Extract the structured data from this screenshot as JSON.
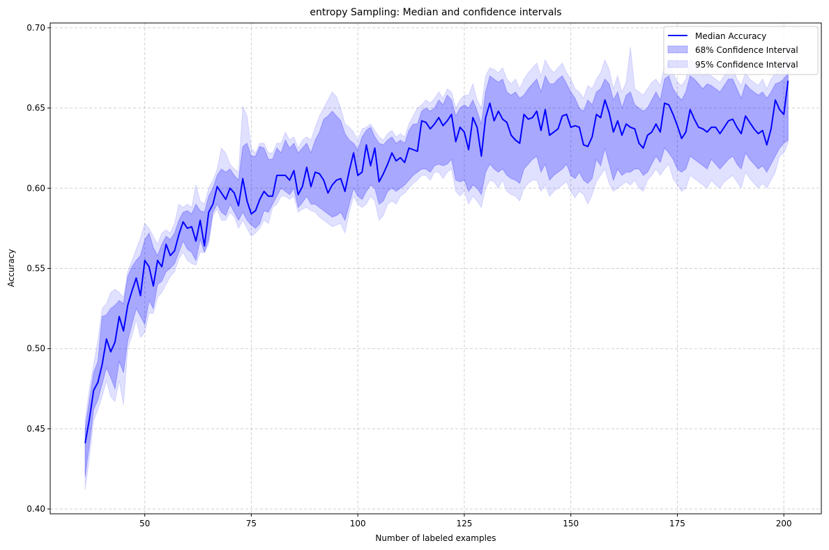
{
  "chart_data": {
    "type": "line",
    "title": "entropy Sampling: Median and confidence intervals",
    "xlabel": "Number of labeled examples",
    "ylabel": "Accuracy",
    "xlim": [
      27.8,
      208.8
    ],
    "ylim": [
      0.397,
      0.703
    ],
    "xticks": [
      50,
      75,
      100,
      125,
      150,
      175,
      200
    ],
    "yticks": [
      0.4,
      0.45,
      0.5,
      0.55,
      0.6,
      0.65,
      0.7
    ],
    "ytick_labels": [
      "0.40",
      "0.45",
      "0.50",
      "0.55",
      "0.60",
      "0.65",
      "0.70"
    ],
    "grid": true,
    "legend_position": "top-right",
    "x_start": 36,
    "x_end": 201,
    "series": [
      {
        "name": "Median Accuracy",
        "kind": "line",
        "color": "#0000ff",
        "values": [
          0.441,
          0.456,
          0.474,
          0.479,
          0.49,
          0.506,
          0.498,
          0.504,
          0.52,
          0.511,
          0.527,
          0.536,
          0.544,
          0.533,
          0.555,
          0.551,
          0.539,
          0.555,
          0.551,
          0.565,
          0.558,
          0.561,
          0.571,
          0.579,
          0.575,
          0.576,
          0.567,
          0.58,
          0.564,
          0.585,
          0.59,
          0.601,
          0.597,
          0.593,
          0.6,
          0.597,
          0.589,
          0.606,
          0.592,
          0.584,
          0.586,
          0.593,
          0.598,
          0.595,
          0.595,
          0.608,
          0.608,
          0.608,
          0.605,
          0.611,
          0.596,
          0.601,
          0.613,
          0.601,
          0.61,
          0.609,
          0.605,
          0.597,
          0.602,
          0.605,
          0.606,
          0.598,
          0.611,
          0.622,
          0.608,
          0.61,
          0.627,
          0.614,
          0.625,
          0.604,
          0.609,
          0.615,
          0.622,
          0.617,
          0.619,
          0.616,
          0.625,
          0.624,
          0.623,
          0.642,
          0.641,
          0.637,
          0.64,
          0.644,
          0.639,
          0.642,
          0.646,
          0.629,
          0.638,
          0.635,
          0.624,
          0.644,
          0.638,
          0.62,
          0.644,
          0.653,
          0.642,
          0.648,
          0.643,
          0.641,
          0.633,
          0.63,
          0.628,
          0.646,
          0.643,
          0.644,
          0.648,
          0.636,
          0.649,
          0.633,
          0.635,
          0.637,
          0.645,
          0.646,
          0.638,
          0.639,
          0.638,
          0.627,
          0.626,
          0.632,
          0.646,
          0.644,
          0.655,
          0.647,
          0.635,
          0.642,
          0.633,
          0.64,
          0.638,
          0.637,
          0.628,
          0.625,
          0.633,
          0.635,
          0.64,
          0.635,
          0.653,
          0.652,
          0.646,
          0.639,
          0.631,
          0.635,
          0.649,
          0.643,
          0.638,
          0.637,
          0.635,
          0.638,
          0.638,
          0.634,
          0.638,
          0.642,
          0.643,
          0.638,
          0.634,
          0.645,
          0.641,
          0.637,
          0.634,
          0.636,
          0.627,
          0.637,
          0.655,
          0.649,
          0.646,
          0.667
        ]
      },
      {
        "name": "68% Confidence Interval",
        "kind": "band",
        "color": "#0000ff",
        "opacity": 0.25,
        "upper": [
          0.45,
          0.468,
          0.485,
          0.492,
          0.52,
          0.521,
          0.525,
          0.527,
          0.53,
          0.528,
          0.545,
          0.551,
          0.555,
          0.558,
          0.568,
          0.572,
          0.563,
          0.558,
          0.565,
          0.57,
          0.568,
          0.572,
          0.58,
          0.585,
          0.586,
          0.584,
          0.59,
          0.586,
          0.585,
          0.595,
          0.6,
          0.608,
          0.612,
          0.61,
          0.612,
          0.608,
          0.605,
          0.626,
          0.628,
          0.62,
          0.62,
          0.626,
          0.625,
          0.618,
          0.618,
          0.625,
          0.622,
          0.63,
          0.625,
          0.628,
          0.622,
          0.625,
          0.628,
          0.622,
          0.63,
          0.635,
          0.643,
          0.645,
          0.648,
          0.645,
          0.642,
          0.634,
          0.63,
          0.628,
          0.624,
          0.632,
          0.636,
          0.638,
          0.632,
          0.628,
          0.627,
          0.63,
          0.632,
          0.628,
          0.63,
          0.628,
          0.636,
          0.64,
          0.64,
          0.648,
          0.65,
          0.648,
          0.65,
          0.655,
          0.652,
          0.658,
          0.655,
          0.645,
          0.65,
          0.652,
          0.65,
          0.655,
          0.648,
          0.64,
          0.66,
          0.67,
          0.668,
          0.666,
          0.668,
          0.66,
          0.658,
          0.66,
          0.656,
          0.658,
          0.662,
          0.665,
          0.668,
          0.66,
          0.67,
          0.665,
          0.665,
          0.668,
          0.67,
          0.665,
          0.66,
          0.656,
          0.65,
          0.648,
          0.655,
          0.652,
          0.66,
          0.662,
          0.668,
          0.665,
          0.655,
          0.66,
          0.65,
          0.658,
          0.66,
          0.652,
          0.65,
          0.648,
          0.65,
          0.655,
          0.66,
          0.655,
          0.668,
          0.67,
          0.662,
          0.658,
          0.655,
          0.66,
          0.67,
          0.668,
          0.665,
          0.662,
          0.665,
          0.664,
          0.662,
          0.66,
          0.664,
          0.668,
          0.668,
          0.662,
          0.656,
          0.665,
          0.662,
          0.66,
          0.658,
          0.66,
          0.656,
          0.66,
          0.665,
          0.666,
          0.668,
          0.672
        ],
        "lower": [
          0.42,
          0.44,
          0.462,
          0.468,
          0.478,
          0.488,
          0.482,
          0.475,
          0.492,
          0.485,
          0.505,
          0.515,
          0.525,
          0.52,
          0.515,
          0.53,
          0.525,
          0.54,
          0.542,
          0.548,
          0.55,
          0.553,
          0.56,
          0.567,
          0.562,
          0.56,
          0.555,
          0.568,
          0.56,
          0.568,
          0.585,
          0.59,
          0.585,
          0.583,
          0.59,
          0.585,
          0.58,
          0.585,
          0.58,
          0.577,
          0.575,
          0.578,
          0.586,
          0.585,
          0.59,
          0.595,
          0.6,
          0.598,
          0.596,
          0.6,
          0.588,
          0.591,
          0.595,
          0.59,
          0.59,
          0.588,
          0.586,
          0.584,
          0.582,
          0.583,
          0.585,
          0.58,
          0.59,
          0.6,
          0.595,
          0.593,
          0.598,
          0.602,
          0.6,
          0.59,
          0.592,
          0.598,
          0.6,
          0.598,
          0.6,
          0.602,
          0.605,
          0.608,
          0.61,
          0.612,
          0.612,
          0.61,
          0.614,
          0.615,
          0.614,
          0.615,
          0.618,
          0.605,
          0.604,
          0.605,
          0.598,
          0.602,
          0.6,
          0.596,
          0.61,
          0.615,
          0.612,
          0.61,
          0.612,
          0.608,
          0.606,
          0.605,
          0.603,
          0.612,
          0.615,
          0.618,
          0.62,
          0.61,
          0.615,
          0.605,
          0.608,
          0.61,
          0.612,
          0.615,
          0.608,
          0.606,
          0.61,
          0.605,
          0.603,
          0.606,
          0.618,
          0.614,
          0.625,
          0.615,
          0.605,
          0.612,
          0.608,
          0.61,
          0.61,
          0.612,
          0.612,
          0.608,
          0.61,
          0.615,
          0.62,
          0.616,
          0.625,
          0.622,
          0.618,
          0.612,
          0.61,
          0.612,
          0.62,
          0.618,
          0.616,
          0.614,
          0.612,
          0.618,
          0.615,
          0.612,
          0.615,
          0.618,
          0.62,
          0.615,
          0.612,
          0.622,
          0.618,
          0.615,
          0.612,
          0.614,
          0.61,
          0.615,
          0.62,
          0.625,
          0.628,
          0.63
        ]
      },
      {
        "name": "95% Confidence Interval",
        "kind": "band",
        "color": "#0000ff",
        "opacity": 0.12,
        "upper": [
          0.455,
          0.475,
          0.49,
          0.505,
          0.525,
          0.528,
          0.535,
          0.537,
          0.535,
          0.532,
          0.548,
          0.555,
          0.562,
          0.569,
          0.578,
          0.575,
          0.57,
          0.565,
          0.572,
          0.574,
          0.572,
          0.578,
          0.59,
          0.588,
          0.59,
          0.588,
          0.602,
          0.592,
          0.59,
          0.6,
          0.605,
          0.612,
          0.625,
          0.622,
          0.615,
          0.612,
          0.61,
          0.651,
          0.645,
          0.625,
          0.622,
          0.628,
          0.628,
          0.622,
          0.622,
          0.628,
          0.628,
          0.635,
          0.63,
          0.632,
          0.625,
          0.63,
          0.632,
          0.63,
          0.638,
          0.645,
          0.65,
          0.655,
          0.66,
          0.657,
          0.65,
          0.64,
          0.638,
          0.635,
          0.63,
          0.637,
          0.638,
          0.64,
          0.636,
          0.632,
          0.63,
          0.634,
          0.636,
          0.632,
          0.634,
          0.632,
          0.64,
          0.645,
          0.65,
          0.652,
          0.655,
          0.653,
          0.656,
          0.66,
          0.656,
          0.662,
          0.66,
          0.65,
          0.655,
          0.658,
          0.658,
          0.665,
          0.655,
          0.65,
          0.67,
          0.675,
          0.674,
          0.672,
          0.675,
          0.668,
          0.665,
          0.668,
          0.662,
          0.668,
          0.672,
          0.675,
          0.678,
          0.67,
          0.68,
          0.675,
          0.672,
          0.675,
          0.678,
          0.672,
          0.668,
          0.662,
          0.66,
          0.656,
          0.664,
          0.662,
          0.668,
          0.672,
          0.68,
          0.674,
          0.662,
          0.67,
          0.66,
          0.666,
          0.688,
          0.662,
          0.66,
          0.658,
          0.662,
          0.666,
          0.668,
          0.664,
          0.676,
          0.678,
          0.672,
          0.666,
          0.664,
          0.668,
          0.68,
          0.678,
          0.674,
          0.67,
          0.672,
          0.67,
          0.668,
          0.666,
          0.67,
          0.674,
          0.676,
          0.668,
          0.664,
          0.672,
          0.668,
          0.666,
          0.664,
          0.668,
          0.662,
          0.668,
          0.672,
          0.675,
          0.678,
          0.69
        ],
        "lower": [
          0.412,
          0.432,
          0.455,
          0.462,
          0.47,
          0.48,
          0.47,
          0.467,
          0.48,
          0.465,
          0.5,
          0.508,
          0.518,
          0.507,
          0.51,
          0.522,
          0.522,
          0.532,
          0.535,
          0.54,
          0.545,
          0.548,
          0.556,
          0.56,
          0.555,
          0.553,
          0.552,
          0.56,
          0.56,
          0.565,
          0.583,
          0.587,
          0.58,
          0.58,
          0.585,
          0.582,
          0.575,
          0.58,
          0.575,
          0.57,
          0.572,
          0.575,
          0.58,
          0.578,
          0.588,
          0.59,
          0.595,
          0.595,
          0.593,
          0.595,
          0.585,
          0.587,
          0.588,
          0.586,
          0.585,
          0.582,
          0.58,
          0.578,
          0.576,
          0.577,
          0.578,
          0.572,
          0.585,
          0.595,
          0.59,
          0.588,
          0.59,
          0.595,
          0.592,
          0.58,
          0.583,
          0.59,
          0.592,
          0.59,
          0.595,
          0.597,
          0.6,
          0.603,
          0.605,
          0.608,
          0.608,
          0.605,
          0.61,
          0.61,
          0.606,
          0.61,
          0.612,
          0.598,
          0.595,
          0.598,
          0.59,
          0.595,
          0.592,
          0.588,
          0.6,
          0.605,
          0.604,
          0.6,
          0.605,
          0.598,
          0.596,
          0.595,
          0.592,
          0.6,
          0.603,
          0.605,
          0.605,
          0.598,
          0.602,
          0.595,
          0.598,
          0.6,
          0.602,
          0.604,
          0.598,
          0.594,
          0.598,
          0.596,
          0.59,
          0.596,
          0.604,
          0.608,
          0.612,
          0.603,
          0.598,
          0.6,
          0.602,
          0.604,
          0.602,
          0.605,
          0.6,
          0.598,
          0.605,
          0.608,
          0.612,
          0.608,
          0.612,
          0.615,
          0.606,
          0.602,
          0.598,
          0.6,
          0.608,
          0.606,
          0.604,
          0.602,
          0.6,
          0.605,
          0.602,
          0.6,
          0.604,
          0.606,
          0.608,
          0.604,
          0.6,
          0.61,
          0.606,
          0.603,
          0.6,
          0.603,
          0.6,
          0.605,
          0.61,
          0.62,
          0.622,
          0.628
        ]
      }
    ]
  }
}
